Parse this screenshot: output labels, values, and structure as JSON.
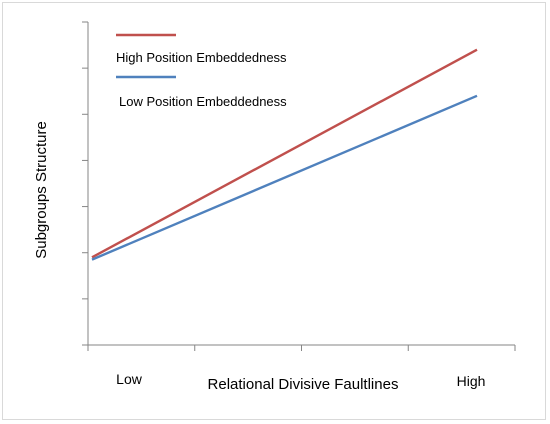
{
  "chart_data": {
    "type": "line",
    "categories": [
      "Low",
      "High"
    ],
    "series": [
      {
        "name": "High Position Embeddedness",
        "color": "#c0504d",
        "values": [
          1.9,
          6.4
        ]
      },
      {
        "name": "Low Position Embeddedness",
        "color": "#4f81bd",
        "values": [
          1.85,
          5.4
        ]
      }
    ],
    "xlabel": "Relational Divisive Faultlines",
    "ylabel": "Subgroups Structure",
    "ylim": [
      0,
      7
    ],
    "ytick_count": 8,
    "xtick_count": 5,
    "grid": false,
    "legend_position": "top-left"
  }
}
